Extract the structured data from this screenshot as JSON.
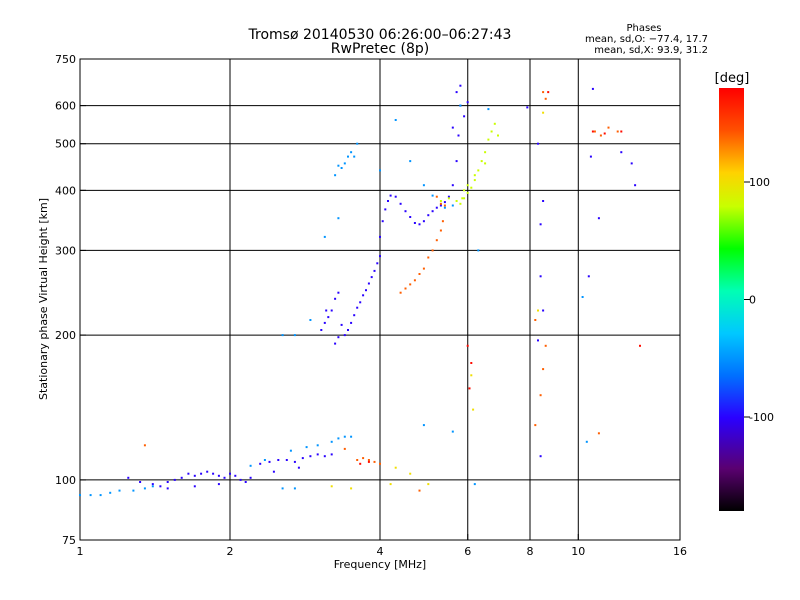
{
  "chart_data": {
    "type": "scatter",
    "title": "Tromsø 20140530 06:26:00–06:27:43",
    "subtitle": "RwPretec (8p)",
    "xlabel": "Frequency [MHz]",
    "ylabel": "Stationary phase Virtual Height [km]",
    "x_scale": "log",
    "y_scale": "log",
    "xlim": [
      1,
      16
    ],
    "ylim": [
      75,
      750
    ],
    "x_ticks": [
      1,
      2,
      4,
      6,
      8,
      10,
      16
    ],
    "y_ticks": [
      75,
      100,
      200,
      300,
      400,
      500,
      600,
      750
    ],
    "x_tick_labels": [
      "1",
      "2",
      "4",
      "6",
      "8",
      "10",
      "16"
    ],
    "y_tick_labels": [
      "75",
      "100",
      "200",
      "300",
      "400",
      "500",
      "600",
      "750"
    ],
    "grid_x": [
      2,
      4,
      6,
      8,
      10
    ],
    "grid_y": [
      100,
      200,
      300,
      400,
      500,
      600
    ],
    "grid": true,
    "phases_box": {
      "title": "Phases",
      "line_o": "mean, sd,O: −77.4, 17.7",
      "line_x": "mean, sd,X:  93.9, 31.2"
    },
    "colorbar": {
      "label": "[deg]",
      "range": [
        -180,
        180
      ],
      "ticks": [
        100,
        0,
        -100
      ],
      "tick_labels": [
        "100",
        "0",
        "-100"
      ]
    },
    "series": [
      {
        "color_value": -100,
        "points": [
          [
            1.25,
            101
          ],
          [
            1.32,
            99
          ],
          [
            1.4,
            98
          ],
          [
            1.45,
            97
          ],
          [
            1.5,
            99
          ],
          [
            1.55,
            100
          ],
          [
            1.6,
            101
          ],
          [
            1.65,
            103
          ],
          [
            1.7,
            102
          ],
          [
            1.75,
            103
          ],
          [
            1.8,
            104
          ],
          [
            1.85,
            103
          ],
          [
            1.9,
            102
          ],
          [
            1.95,
            101
          ],
          [
            2.0,
            103
          ],
          [
            2.05,
            102
          ],
          [
            2.1,
            100
          ],
          [
            2.2,
            101
          ],
          [
            2.3,
            108
          ],
          [
            2.4,
            109
          ],
          [
            2.5,
            110
          ],
          [
            2.6,
            110
          ],
          [
            2.7,
            109
          ],
          [
            2.8,
            111
          ],
          [
            2.9,
            112
          ],
          [
            3.0,
            113
          ],
          [
            3.1,
            112
          ],
          [
            3.2,
            113
          ],
          [
            1.5,
            96
          ],
          [
            1.7,
            97
          ],
          [
            1.9,
            98
          ],
          [
            2.15,
            99
          ],
          [
            2.45,
            104
          ],
          [
            2.75,
            106
          ],
          [
            3.05,
            205
          ],
          [
            3.1,
            212
          ],
          [
            3.15,
            218
          ],
          [
            3.2,
            225
          ],
          [
            3.25,
            238
          ],
          [
            3.3,
            245
          ],
          [
            3.35,
            210
          ],
          [
            3.4,
            200
          ],
          [
            3.45,
            205
          ],
          [
            3.5,
            212
          ],
          [
            3.55,
            220
          ],
          [
            3.6,
            228
          ],
          [
            3.65,
            234
          ],
          [
            3.7,
            242
          ],
          [
            3.75,
            248
          ],
          [
            3.8,
            256
          ],
          [
            3.85,
            264
          ],
          [
            3.9,
            272
          ],
          [
            3.95,
            282
          ],
          [
            4.0,
            292
          ],
          [
            3.25,
            192
          ],
          [
            3.3,
            198
          ],
          [
            3.12,
            225
          ],
          [
            4.0,
            320
          ],
          [
            4.05,
            345
          ],
          [
            4.1,
            365
          ],
          [
            4.15,
            380
          ],
          [
            4.2,
            390
          ],
          [
            4.3,
            388
          ],
          [
            4.4,
            375
          ],
          [
            4.5,
            362
          ],
          [
            4.6,
            352
          ],
          [
            4.7,
            342
          ],
          [
            4.8,
            340
          ],
          [
            4.9,
            345
          ],
          [
            5.0,
            355
          ],
          [
            5.1,
            362
          ],
          [
            5.2,
            368
          ],
          [
            5.3,
            372
          ],
          [
            5.4,
            378
          ],
          [
            5.5,
            388
          ],
          [
            5.6,
            410
          ],
          [
            5.7,
            460
          ],
          [
            5.75,
            520
          ],
          [
            5.8,
            600
          ],
          [
            5.6,
            540
          ],
          [
            5.9,
            570
          ],
          [
            5.7,
            640
          ],
          [
            5.8,
            660
          ],
          [
            6.0,
            610
          ],
          [
            7.9,
            595
          ],
          [
            8.3,
            500
          ],
          [
            8.4,
            340
          ],
          [
            8.5,
            380
          ],
          [
            8.4,
            265
          ],
          [
            8.5,
            225
          ],
          [
            8.3,
            195
          ],
          [
            8.4,
            112
          ],
          [
            10.5,
            265
          ],
          [
            10.6,
            470
          ],
          [
            10.7,
            650
          ],
          [
            11.0,
            350
          ],
          [
            12.2,
            480
          ],
          [
            12.8,
            455
          ],
          [
            13.0,
            410
          ]
        ]
      },
      {
        "color_value": -50,
        "points": [
          [
            1.0,
            93
          ],
          [
            1.05,
            93
          ],
          [
            1.1,
            93
          ],
          [
            1.15,
            94
          ],
          [
            1.2,
            95
          ],
          [
            1.28,
            95
          ],
          [
            1.35,
            96
          ],
          [
            1.4,
            97
          ],
          [
            2.2,
            107
          ],
          [
            2.35,
            110
          ],
          [
            2.65,
            115
          ],
          [
            2.85,
            117
          ],
          [
            3.0,
            118
          ],
          [
            3.2,
            120
          ],
          [
            3.3,
            122
          ],
          [
            3.4,
            123
          ],
          [
            3.5,
            123
          ],
          [
            2.55,
            96
          ],
          [
            2.7,
            96
          ],
          [
            3.25,
            430
          ],
          [
            3.3,
            450
          ],
          [
            3.35,
            445
          ],
          [
            3.4,
            455
          ],
          [
            3.45,
            470
          ],
          [
            3.5,
            480
          ],
          [
            3.55,
            470
          ],
          [
            3.6,
            500
          ],
          [
            4.0,
            440
          ],
          [
            4.3,
            560
          ],
          [
            4.6,
            460
          ],
          [
            4.9,
            410
          ],
          [
            5.1,
            390
          ],
          [
            5.4,
            368
          ],
          [
            5.6,
            372
          ],
          [
            6.3,
            300
          ],
          [
            5.8,
            600
          ],
          [
            6.6,
            590
          ],
          [
            2.55,
            200
          ],
          [
            2.7,
            200
          ],
          [
            2.9,
            215
          ],
          [
            3.1,
            320
          ],
          [
            3.3,
            350
          ],
          [
            6.2,
            98
          ],
          [
            5.6,
            126
          ],
          [
            4.9,
            130
          ],
          [
            10.4,
            120
          ],
          [
            10.2,
            240
          ]
        ]
      },
      {
        "color_value": 80,
        "points": [
          [
            5.3,
            380
          ],
          [
            5.5,
            385
          ],
          [
            5.7,
            380
          ],
          [
            5.8,
            375
          ],
          [
            5.9,
            385
          ],
          [
            6.0,
            395
          ],
          [
            6.1,
            405
          ],
          [
            6.2,
            420
          ],
          [
            6.3,
            440
          ],
          [
            6.4,
            460
          ],
          [
            6.5,
            480
          ],
          [
            6.6,
            510
          ],
          [
            6.7,
            530
          ],
          [
            6.8,
            550
          ],
          [
            6.9,
            520
          ],
          [
            6.5,
            455
          ],
          [
            6.2,
            430
          ],
          [
            6.0,
            410
          ],
          [
            5.9,
            400
          ],
          [
            5.85,
            385
          ]
        ]
      },
      {
        "color_value": 140,
        "points": [
          [
            4.4,
            245
          ],
          [
            4.5,
            250
          ],
          [
            4.6,
            255
          ],
          [
            4.7,
            260
          ],
          [
            4.8,
            268
          ],
          [
            4.9,
            275
          ],
          [
            5.0,
            290
          ],
          [
            5.1,
            300
          ],
          [
            5.2,
            315
          ],
          [
            5.3,
            330
          ],
          [
            5.35,
            345
          ],
          [
            3.6,
            110
          ],
          [
            3.7,
            111
          ],
          [
            3.8,
            110
          ],
          [
            3.9,
            109
          ],
          [
            4.0,
            108
          ],
          [
            5.3,
            375
          ],
          [
            5.2,
            388
          ],
          [
            5.4,
            372
          ],
          [
            4.8,
            95
          ],
          [
            1.35,
            118
          ],
          [
            3.4,
            116
          ],
          [
            8.2,
            130
          ],
          [
            8.4,
            150
          ],
          [
            8.5,
            170
          ],
          [
            8.6,
            190
          ],
          [
            8.2,
            215
          ],
          [
            11.0,
            125
          ],
          [
            11.5,
            540
          ],
          [
            11.1,
            520
          ],
          [
            10.8,
            530
          ],
          [
            12.0,
            530
          ],
          [
            8.5,
            640
          ],
          [
            8.6,
            620
          ]
        ]
      },
      {
        "color_value": 175,
        "points": [
          [
            6.0,
            190
          ],
          [
            6.05,
            155
          ],
          [
            6.1,
            175
          ],
          [
            8.7,
            640
          ],
          [
            13.3,
            190
          ],
          [
            10.7,
            530
          ],
          [
            11.3,
            525
          ],
          [
            12.2,
            530
          ],
          [
            3.65,
            108
          ],
          [
            3.8,
            109
          ]
        ]
      },
      {
        "color_value": 100,
        "points": [
          [
            4.3,
            106
          ],
          [
            4.6,
            103
          ],
          [
            5.0,
            98
          ],
          [
            6.1,
            165
          ],
          [
            6.15,
            140
          ],
          [
            8.3,
            225
          ],
          [
            8.5,
            580
          ],
          [
            4.2,
            98
          ],
          [
            3.2,
            97
          ],
          [
            3.5,
            96
          ]
        ]
      }
    ]
  }
}
